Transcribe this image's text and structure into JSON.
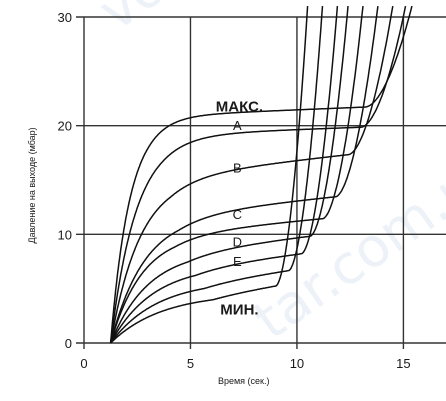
{
  "chart_data": {
    "type": "line",
    "title": "",
    "xlabel": "Время (сек.)",
    "ylabel": "Давление на выходе (мбар)",
    "xlim": [
      0,
      17
    ],
    "ylim": [
      0,
      30
    ],
    "x_ticks": [
      0,
      5,
      10,
      15
    ],
    "x_tick_labels": [
      "0",
      "5",
      "10",
      "15"
    ],
    "y_ticks": [
      0,
      10,
      20,
      30
    ],
    "y_tick_labels": [
      "0",
      "10",
      "20",
      "30"
    ],
    "grid": true,
    "curve_labels": [
      {
        "text": "А",
        "x": 7.2,
        "y": 19.6
      },
      {
        "text": "В",
        "x": 7.2,
        "y": 15.7
      },
      {
        "text": "С",
        "x": 7.2,
        "y": 11.4
      },
      {
        "text": "D",
        "x": 7.2,
        "y": 8.9
      },
      {
        "text": "Е",
        "x": 7.2,
        "y": 7.1
      }
    ],
    "band_labels": [
      {
        "text": "МАКС.",
        "x": 7.3,
        "y": 21.3
      },
      {
        "text": "МИН.",
        "x": 7.3,
        "y": 2.6
      }
    ],
    "watermarks": [
      {
        "text": "vo",
        "x": 1.5,
        "y": 28.6,
        "rotate": -35
      },
      {
        "text": "tar.com.ua",
        "x": 8.8,
        "y": 0.2,
        "rotate": -35
      }
    ],
    "curve_color": "#111111",
    "grid_color": "#333333",
    "series": [
      {
        "start": 1.25,
        "level": 20.9,
        "rise": 0.9,
        "slope": 0.08,
        "jump_at": 13.2,
        "end": 15.4
      },
      {
        "start": 1.25,
        "level": 19.2,
        "rise": 1.2,
        "slope": 0.07,
        "jump_at": 13.0,
        "end": 15.1
      },
      {
        "start": 1.25,
        "level": 15.5,
        "rise": 1.4,
        "slope": 0.22,
        "jump_at": 12.4,
        "end": 14.5
      },
      {
        "start": 1.25,
        "level": 12.0,
        "rise": 1.6,
        "slope": 0.2,
        "jump_at": 11.8,
        "end": 13.8
      },
      {
        "start": 1.25,
        "level": 10.2,
        "rise": 1.5,
        "slope": 0.18,
        "jump_at": 11.2,
        "end": 13.1
      },
      {
        "start": 1.25,
        "level": 8.6,
        "rise": 1.8,
        "slope": 0.22,
        "jump_at": 10.6,
        "end": 12.4
      },
      {
        "start": 1.25,
        "level": 7.2,
        "rise": 2.0,
        "slope": 0.22,
        "jump_at": 10.2,
        "end": 11.9
      },
      {
        "start": 1.25,
        "level": 5.8,
        "rise": 2.2,
        "slope": 0.25,
        "jump_at": 9.6,
        "end": 11.2
      },
      {
        "start": 1.25,
        "level": 4.6,
        "rise": 2.4,
        "slope": 0.28,
        "jump_at": 9.0,
        "end": 10.5
      }
    ]
  }
}
